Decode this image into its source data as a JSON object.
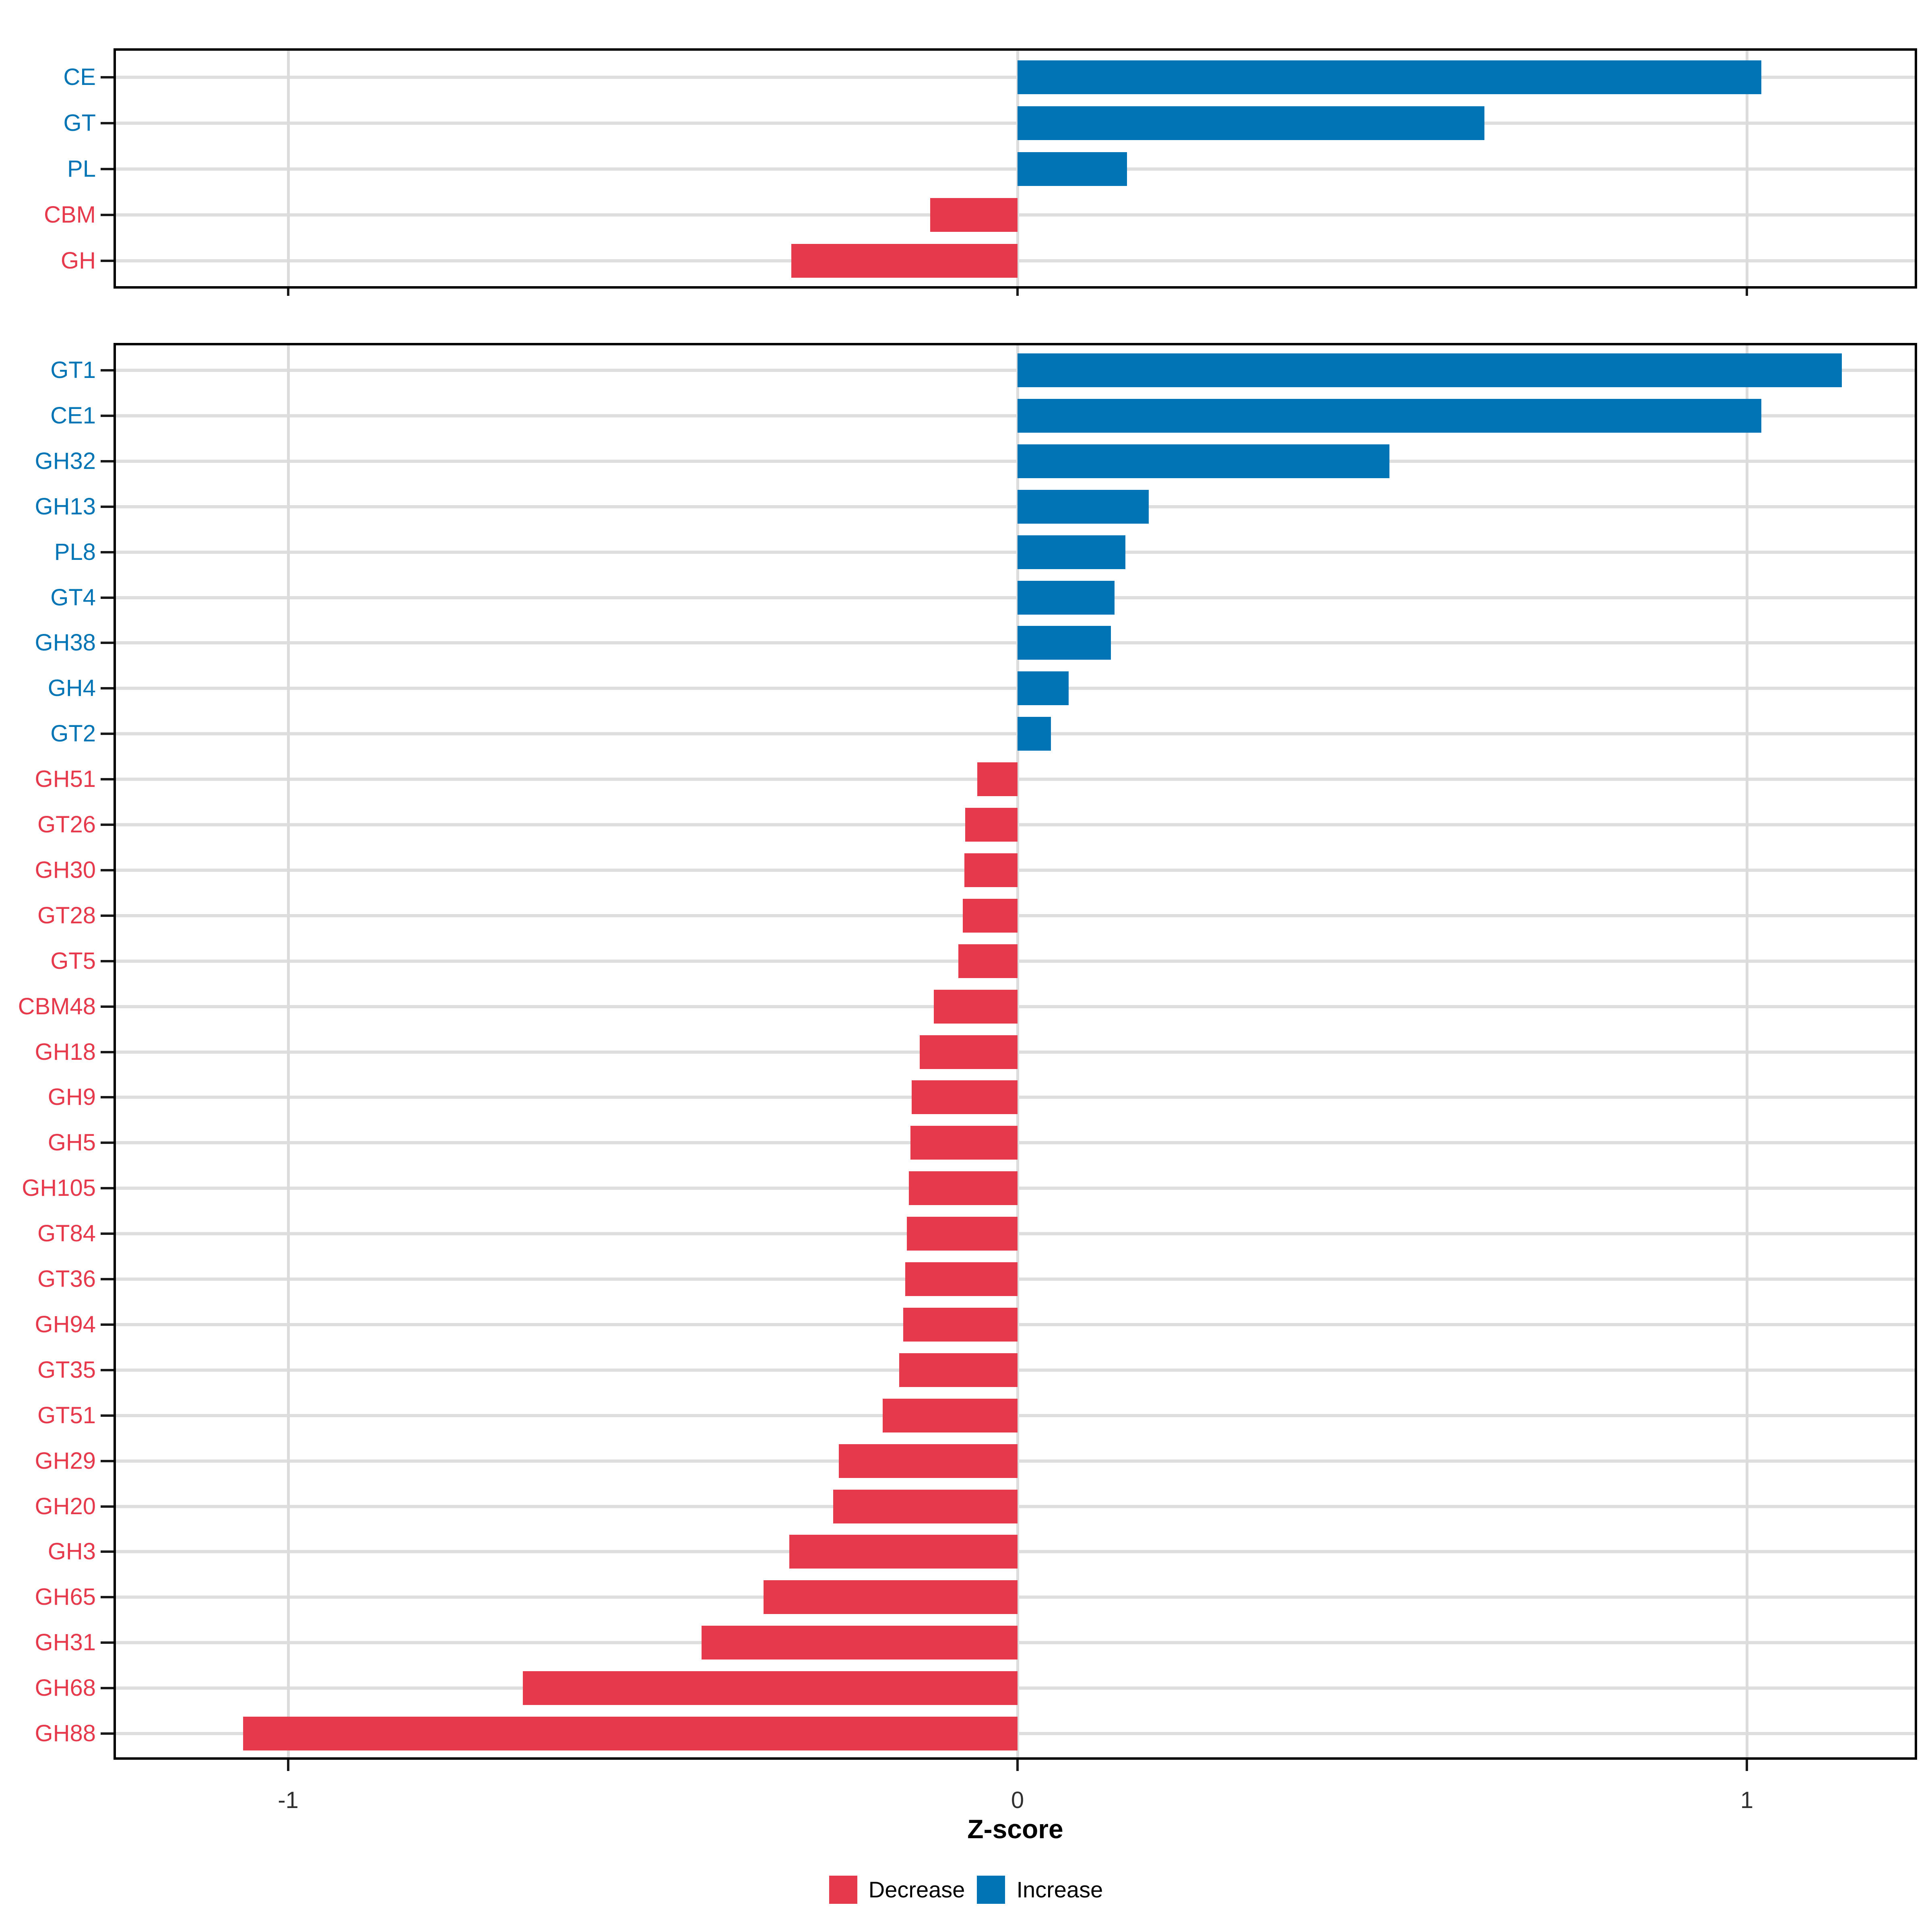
{
  "page": {
    "background": "#FFFFFF"
  },
  "colors": {
    "increase": "#0074B4",
    "decrease": "#E6394B",
    "grid_horizontal": "#DEDEDE",
    "grid_vertical": "#DCDCDC",
    "panel_border": "#000000",
    "tick": "#1a1a1a",
    "tick_label": "#303030"
  },
  "axis": {
    "x_label": "Z-score",
    "x_ticks": [
      "-1",
      "0",
      "1"
    ],
    "x_tick_values": [
      -1,
      0,
      1
    ]
  },
  "legend": {
    "items": [
      {
        "label": "Decrease",
        "color": "#E6394B"
      },
      {
        "label": "Increase",
        "color": "#0074B4"
      }
    ]
  },
  "chart_data": [
    {
      "type": "bar",
      "orientation": "horizontal",
      "panel": "top",
      "title": "",
      "xlabel": "Z-score",
      "ylabel": "",
      "xlim": [
        -1.24,
        1.23
      ],
      "grid": true,
      "x_ticks": [
        -1,
        0,
        1
      ],
      "categories": [
        "CE",
        "GT",
        "PL",
        "CBM",
        "GH"
      ],
      "values": [
        1.02,
        0.64,
        0.15,
        -0.12,
        -0.31
      ]
    },
    {
      "type": "bar",
      "orientation": "horizontal",
      "panel": "bottom",
      "title": "",
      "xlabel": "Z-score",
      "ylabel": "",
      "xlim": [
        -1.24,
        1.23
      ],
      "grid": true,
      "x_ticks": [
        -1,
        0,
        1
      ],
      "categories": [
        "GT1",
        "CE1",
        "GH32",
        "GH13",
        "PL8",
        "GT4",
        "GH38",
        "GH4",
        "GT2",
        "GH51",
        "GT26",
        "GH30",
        "GT28",
        "GT5",
        "CBM48",
        "GH18",
        "GH9",
        "GH5",
        "GH105",
        "GT84",
        "GT36",
        "GH94",
        "GT35",
        "GT51",
        "GH29",
        "GH20",
        "GH3",
        "GH65",
        "GH31",
        "GH68",
        "GH88"
      ],
      "values": [
        1.13,
        1.02,
        0.51,
        0.18,
        0.148,
        0.133,
        0.128,
        0.07,
        0.046,
        -0.055,
        -0.072,
        -0.073,
        -0.075,
        -0.081,
        -0.115,
        -0.134,
        -0.145,
        -0.147,
        -0.149,
        -0.152,
        -0.154,
        -0.157,
        -0.162,
        -0.185,
        -0.245,
        -0.253,
        -0.313,
        -0.348,
        -0.433,
        -0.678,
        -1.062
      ]
    }
  ]
}
